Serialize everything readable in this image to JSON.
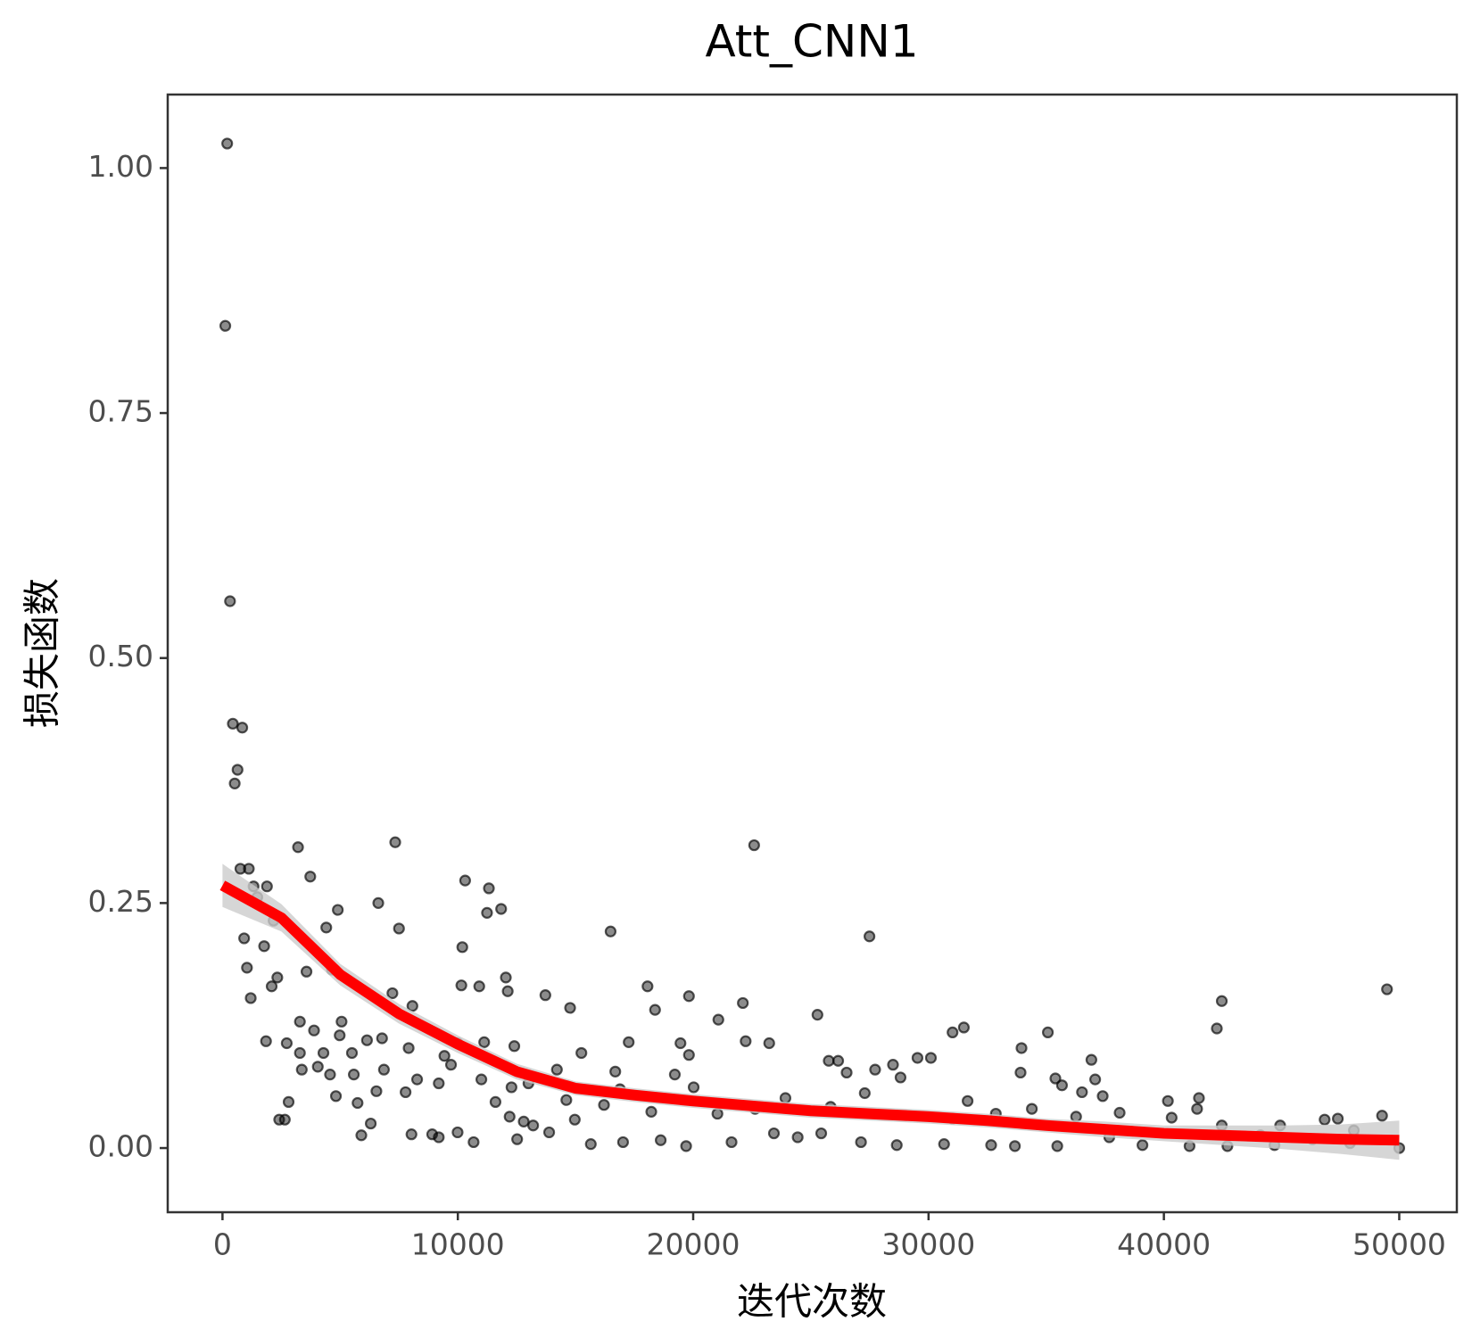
{
  "chart_data": {
    "type": "scatter",
    "title": "Att_CNN1",
    "x_label": "迭代次数",
    "y_label": "损失函数",
    "xlim": [
      -2327,
      52447
    ],
    "ylim": [
      -0.0655,
      1.075
    ],
    "xticks": [
      0,
      10000,
      20000,
      30000,
      40000,
      50000
    ],
    "yticks": [
      {
        "value": 0,
        "label": "0.00"
      },
      0.25,
      {
        "value": 0.5,
        "label": "0.50"
      },
      0.75,
      {
        "value": 1,
        "label": "1.00"
      }
    ],
    "grid": false,
    "series": [
      {
        "color": "#000000",
        "alpha": 0.45,
        "x": [
          200,
          120,
          320,
          440,
          840,
          640,
          520,
          3210,
          7340,
          22590,
          760,
          1120,
          1890,
          1320,
          3730,
          10310,
          11320,
          1480,
          6620,
          4900,
          11840,
          11240,
          7500,
          16490,
          27490,
          4410,
          920,
          2170,
          1770,
          10190,
          1040,
          2330,
          3570,
          4650,
          1200,
          2090,
          12040,
          10150,
          10910,
          12120,
          13720,
          18060,
          19820,
          22110,
          42460,
          49480,
          7220,
          8070,
          14770,
          18380,
          21070,
          25280,
          35070,
          31500,
          31020,
          42250,
          3290,
          5060,
          1850,
          2730,
          3890,
          4980,
          6140,
          6780,
          9990,
          11120,
          12400,
          17260,
          19460,
          22230,
          23230,
          33950,
          36920,
          3290,
          4290,
          5500,
          7910,
          9430,
          15250,
          19820,
          25760,
          26160,
          29530,
          30100,
          3370,
          4050,
          6860,
          9710,
          14210,
          16690,
          19220,
          26520,
          27730,
          28490,
          33910,
          37080,
          4570,
          5580,
          8270,
          9190,
          11000,
          13000,
          28810,
          35390,
          6540,
          7780,
          12280,
          16890,
          20020,
          23920,
          27290,
          31660,
          35670,
          36520,
          37400,
          40170,
          41490,
          4820,
          5740,
          2810,
          2650,
          2410,
          6300,
          8030,
          5900,
          8910,
          9190,
          9990,
          10670,
          12520,
          12800,
          13200,
          13880,
          14970,
          15650,
          17020,
          18620,
          19700,
          21630,
          23430,
          24440,
          25440,
          27130,
          28650,
          30660,
          32660,
          33670,
          35470,
          37680,
          39090,
          41090,
          42700,
          44700,
          46310,
          47910,
          50000,
          41410,
          40330,
          38120,
          42460,
          44940,
          46830,
          47390,
          49270,
          48070,
          44100,
          34390,
          32860,
          31020,
          36270,
          25840,
          22630,
          21030,
          18220,
          16210,
          14610,
          11600,
          12200
        ],
        "values": [
          1.025,
          0.839,
          0.558,
          0.433,
          0.429,
          0.386,
          0.372,
          0.307,
          0.312,
          0.309,
          0.285,
          0.285,
          0.267,
          0.267,
          0.277,
          0.273,
          0.265,
          0.256,
          0.25,
          0.243,
          0.244,
          0.24,
          0.224,
          0.221,
          0.216,
          0.225,
          0.214,
          0.232,
          0.206,
          0.205,
          0.184,
          0.174,
          0.18,
          0.182,
          0.153,
          0.165,
          0.174,
          0.166,
          0.165,
          0.16,
          0.156,
          0.165,
          0.155,
          0.148,
          0.15,
          0.162,
          0.158,
          0.145,
          0.143,
          0.141,
          0.131,
          0.136,
          0.118,
          0.123,
          0.118,
          0.122,
          0.129,
          0.129,
          0.109,
          0.107,
          0.12,
          0.115,
          0.11,
          0.112,
          0.107,
          0.108,
          0.104,
          0.108,
          0.107,
          0.109,
          0.107,
          0.102,
          0.09,
          0.097,
          0.097,
          0.097,
          0.102,
          0.094,
          0.097,
          0.095,
          0.089,
          0.089,
          0.092,
          0.092,
          0.08,
          0.083,
          0.08,
          0.085,
          0.08,
          0.078,
          0.075,
          0.077,
          0.08,
          0.085,
          0.077,
          0.07,
          0.075,
          0.075,
          0.07,
          0.066,
          0.07,
          0.066,
          0.072,
          0.071,
          0.058,
          0.057,
          0.062,
          0.06,
          0.062,
          0.051,
          0.056,
          0.048,
          0.064,
          0.057,
          0.053,
          0.048,
          0.051,
          0.053,
          0.046,
          0.047,
          0.029,
          0.029,
          0.025,
          0.014,
          0.013,
          0.014,
          0.011,
          0.016,
          0.006,
          0.009,
          0.027,
          0.023,
          0.016,
          0.029,
          0.004,
          0.006,
          0.008,
          0.002,
          0.006,
          0.015,
          0.011,
          0.015,
          0.006,
          0.003,
          0.004,
          0.003,
          0.002,
          0.002,
          0.011,
          0.003,
          0.002,
          0.002,
          0.003,
          0.009,
          0.005,
          0,
          0.04,
          0.031,
          0.036,
          0.023,
          0.023,
          0.029,
          0.03,
          0.033,
          0.018,
          0.013,
          0.04,
          0.035,
          0.03,
          0.032,
          0.042,
          0.04,
          0.035,
          0.037,
          0.044,
          0.049,
          0.047,
          0.032
        ]
      }
    ],
    "smooth": {
      "color": "#ff0000",
      "band_color": "#cccccc",
      "x": [
        0,
        2500,
        5000,
        7500,
        10000,
        12500,
        15000,
        17500,
        20000,
        22500,
        25000,
        27500,
        30000,
        32500,
        35000,
        37500,
        40000,
        42500,
        45000,
        47500,
        50000
      ],
      "values": [
        0.268,
        0.235,
        0.177,
        0.137,
        0.106,
        0.078,
        0.061,
        0.054,
        0.048,
        0.043,
        0.038,
        0.035,
        0.032,
        0.028,
        0.023,
        0.019,
        0.015,
        0.013,
        0.011,
        0.009,
        0.008
      ],
      "lower": [
        0.246,
        0.221,
        0.166,
        0.127,
        0.097,
        0.07,
        0.054,
        0.047,
        0.041,
        0.036,
        0.031,
        0.028,
        0.025,
        0.021,
        0.016,
        0.011,
        0.007,
        0.003,
        -0.001,
        -0.006,
        -0.012
      ],
      "upper": [
        0.29,
        0.249,
        0.188,
        0.147,
        0.115,
        0.086,
        0.068,
        0.061,
        0.055,
        0.05,
        0.045,
        0.042,
        0.039,
        0.035,
        0.03,
        0.027,
        0.023,
        0.023,
        0.023,
        0.024,
        0.028
      ]
    }
  }
}
